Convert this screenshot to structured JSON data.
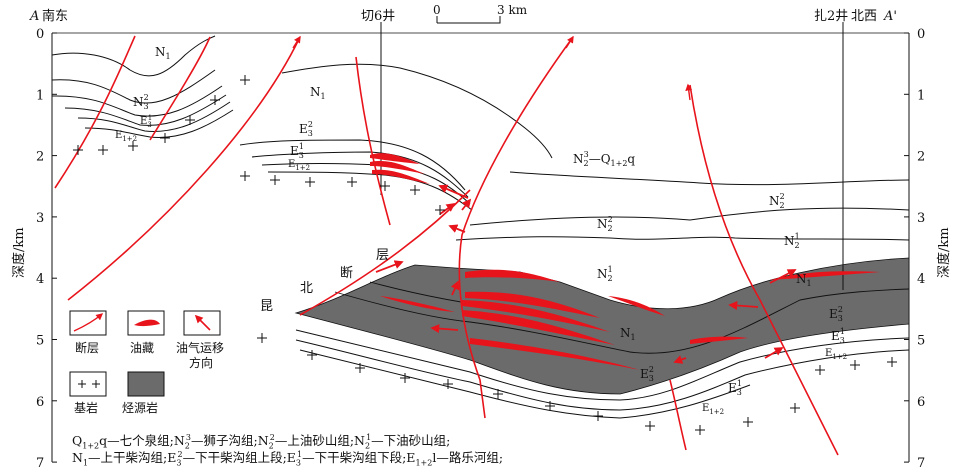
{
  "header": {
    "section_start": "A",
    "direction_left": "南东",
    "well_1": "切6井",
    "well_2": "扎2井",
    "direction_right": "北西",
    "section_end": "A'"
  },
  "scale_bar": {
    "zero": "0",
    "end": "3 km"
  },
  "axis": {
    "label": "深度/km",
    "ticks": [
      "0",
      "1",
      "2",
      "3",
      "4",
      "5",
      "6",
      "7"
    ]
  },
  "formation_labels": {
    "n1_left": "N1",
    "n23_left": "N3 2",
    "e31_left": "E3 1",
    "e12_left": "E1+2",
    "n1_mid": "N1",
    "e32_mid": "E3 2",
    "e31_mid": "E3 1",
    "e12_mid": "E1+2",
    "n23_q": "N2 3—Q1+2q",
    "n22_mid": "N2 2",
    "n21_mid": "N2 1",
    "n22_right": "N2 2",
    "n21_right": "N2 1",
    "n1_right": "N1",
    "e32_right": "E3 2",
    "e31_right": "E3 1",
    "e12_right": "E1+2",
    "n1_basin": "N1",
    "e32_basin": "E3 2",
    "e31_basin": "E3 1",
    "e12_basin": "E1+2"
  },
  "fault_label": [
    "昆",
    "北",
    "断",
    "层"
  ],
  "legend": {
    "fault": "断层",
    "reservoir": "油藏",
    "migration": "油气运移",
    "migration_2": "方向",
    "basement": "基岩",
    "source_rock": "烃源岩"
  },
  "caption": {
    "line1": "Q1+2q—七个泉组;N2 3—狮子沟组;N2 2—上油砂山组;N2 1—下油砂山组;",
    "line2": "N1—上干柴沟组;E3 2—下干柴沟组上段;E3 1—下干柴沟组下段;E1+2l—路乐河组;"
  },
  "colors": {
    "fault": "#e8141c",
    "reservoir": "#e8141c",
    "source_rock": "#6b6b6b",
    "line": "#111111"
  }
}
